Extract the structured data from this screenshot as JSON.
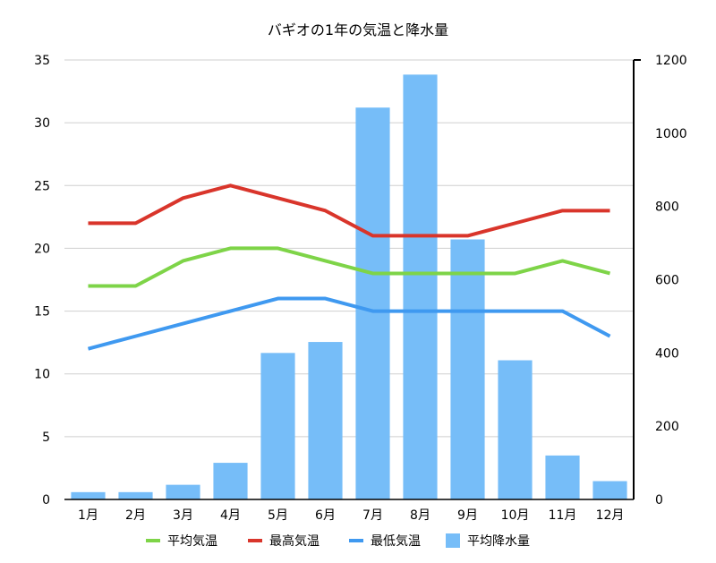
{
  "chart_data": {
    "type": "bar",
    "title": "バギオの1年の気温と降水量",
    "categories": [
      "1月",
      "2月",
      "3月",
      "4月",
      "5月",
      "6月",
      "7月",
      "8月",
      "9月",
      "10月",
      "11月",
      "12月"
    ],
    "y_left": {
      "ylim": [
        0,
        35
      ],
      "ticks": [
        0,
        5,
        10,
        15,
        20,
        25,
        30,
        35
      ]
    },
    "y_right": {
      "ylim": [
        0,
        1200
      ],
      "ticks": [
        0,
        200,
        400,
        600,
        800,
        1000,
        1200
      ]
    },
    "grid": true,
    "legend_position": "bottom",
    "bar_series": [
      {
        "name": "平均降水量",
        "axis": "right",
        "color": "#76bdf8",
        "values": [
          20,
          20,
          40,
          100,
          400,
          430,
          1070,
          1160,
          710,
          380,
          120,
          50
        ]
      }
    ],
    "line_series": [
      {
        "name": "平均気温",
        "axis": "left",
        "color": "#7ed448",
        "values": [
          17,
          17,
          19,
          20,
          20,
          19,
          18,
          18,
          18,
          18,
          19,
          18
        ]
      },
      {
        "name": "最高気温",
        "axis": "left",
        "color": "#d9352b",
        "values": [
          22,
          22,
          24,
          25,
          24,
          23,
          21,
          21,
          21,
          22,
          23,
          23
        ]
      },
      {
        "name": "最低気温",
        "axis": "left",
        "color": "#3f99f0",
        "values": [
          12,
          13,
          14,
          15,
          16,
          16,
          15,
          15,
          15,
          15,
          15,
          13
        ]
      }
    ],
    "legend": [
      "平均気温",
      "最高気温",
      "最低気温",
      "平均降水量"
    ]
  }
}
